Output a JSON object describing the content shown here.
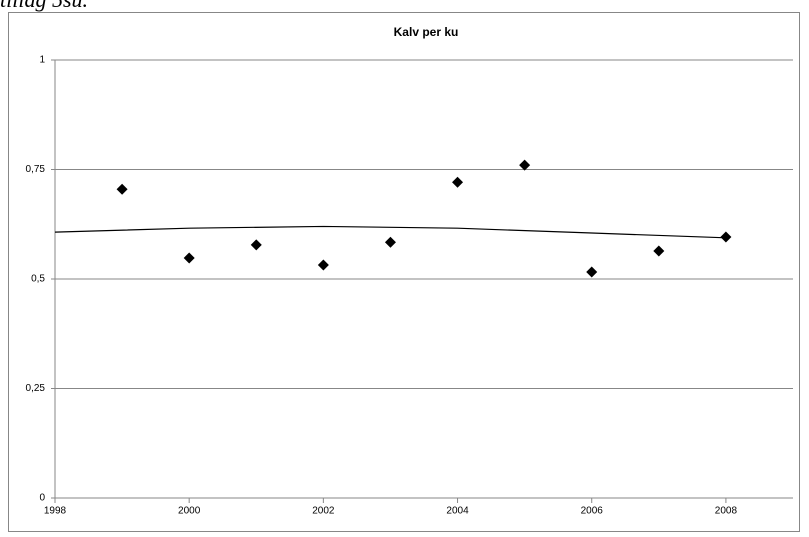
{
  "caption": "tillag 5su.",
  "chart_data": {
    "type": "scatter",
    "title": "Kalv per ku",
    "series": [
      {
        "color": "#000000",
        "x": [
          1999,
          2000,
          2001,
          2002,
          2003,
          2004,
          2005,
          2006,
          2007,
          2008
        ],
        "values": [
          0.705,
          0.548,
          0.578,
          0.532,
          0.584,
          0.721,
          0.76,
          0.516,
          0.564,
          0.596
        ]
      },
      {
        "color": "#000000",
        "kind": "trendline",
        "x": [
          1998,
          2000,
          2002,
          2004,
          2006,
          2008
        ],
        "values": [
          0.607,
          0.616,
          0.62,
          0.616,
          0.605,
          0.594
        ]
      }
    ],
    "xlim": [
      1998,
      2009
    ],
    "xticks": [
      1998,
      2000,
      2002,
      2004,
      2006,
      2008
    ],
    "ylim": [
      0,
      1
    ],
    "yticks": [
      0,
      {
        "value": 0.25,
        "label": "0,25"
      },
      {
        "value": 0.5,
        "label": "0,5"
      },
      {
        "value": 0.75,
        "label": "0,75"
      },
      1
    ],
    "grid": true
  }
}
